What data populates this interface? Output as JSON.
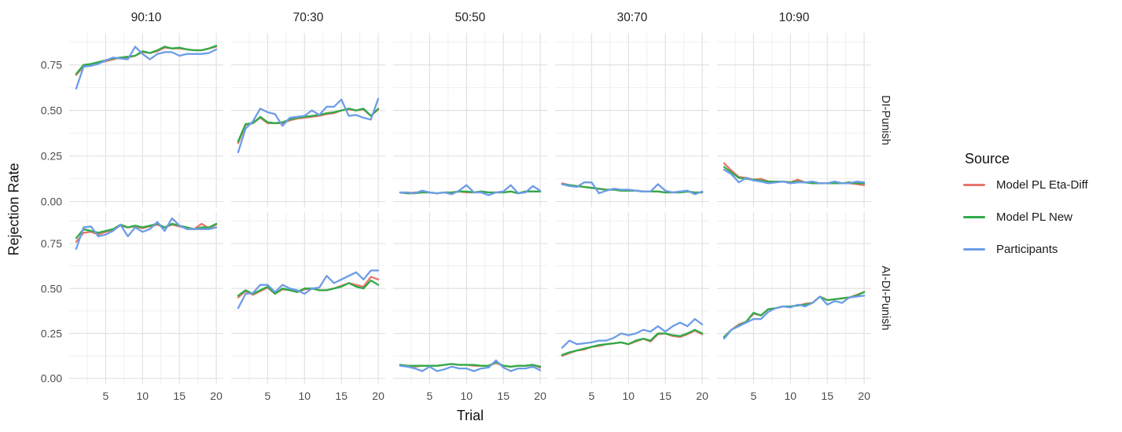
{
  "figure": {
    "y_axis_title": "Rejection Rate",
    "x_axis_title": "Trial"
  },
  "legend": {
    "title": "Source",
    "items": [
      {
        "label": "Model PL Eta-Diff",
        "color": "#e8756c"
      },
      {
        "label": "Model PL New",
        "color": "#2fab48"
      },
      {
        "label": "Participants",
        "color": "#6d9ce8"
      }
    ]
  },
  "chart_data": {
    "type": "line",
    "title": "",
    "xlabel": "Trial",
    "ylabel": "Rejection Rate",
    "x": [
      1,
      2,
      3,
      4,
      5,
      6,
      7,
      8,
      9,
      10,
      11,
      12,
      13,
      14,
      15,
      16,
      17,
      18,
      19,
      20
    ],
    "x_ticks": [
      5,
      10,
      15,
      20
    ],
    "x_tick_labels": [
      "5",
      "10",
      "15",
      "20"
    ],
    "x_minor_ticks": [
      2.5,
      7.5,
      12.5,
      17.5
    ],
    "y_ticks": [
      0,
      0.25,
      0.5,
      0.75
    ],
    "y_tick_labels": [
      "0.00",
      "0.25",
      "0.50",
      "0.75"
    ],
    "y_minor_ticks": [
      0.125,
      0.375,
      0.625,
      0.875
    ],
    "ylim": [
      0,
      0.9
    ],
    "xlim": [
      1,
      20
    ],
    "grid": true,
    "legend_position": "right",
    "facet_columns": [
      "90:10",
      "70:30",
      "50:50",
      "30:70",
      "10:90"
    ],
    "facet_rows": [
      "DI-Punish",
      "AI-DI-Punish"
    ],
    "series_names": [
      "Model PL Eta-Diff",
      "Model PL New",
      "Participants"
    ],
    "series_colors": {
      "Model PL Eta-Diff": "#e8756c",
      "Model PL New": "#2fab48",
      "Participants": "#6d9ce8"
    },
    "facets": [
      {
        "row": "DI-Punish",
        "col": "90:10",
        "series": [
          {
            "name": "Model PL Eta-Diff",
            "values": [
              0.695,
              0.74,
              0.75,
              0.76,
              0.77,
              0.78,
              0.79,
              0.79,
              0.8,
              0.82,
              0.815,
              0.825,
              0.845,
              0.84,
              0.84,
              0.835,
              0.83,
              0.83,
              0.84,
              0.85
            ]
          },
          {
            "name": "Model PL New",
            "values": [
              0.7,
              0.75,
              0.755,
              0.765,
              0.775,
              0.785,
              0.79,
              0.795,
              0.8,
              0.825,
              0.815,
              0.83,
              0.85,
              0.84,
              0.845,
              0.835,
              0.83,
              0.83,
              0.84,
              0.855
            ]
          },
          {
            "name": "Participants",
            "values": [
              0.62,
              0.74,
              0.745,
              0.755,
              0.775,
              0.79,
              0.785,
              0.78,
              0.85,
              0.81,
              0.78,
              0.81,
              0.82,
              0.82,
              0.8,
              0.81,
              0.81,
              0.81,
              0.815,
              0.835
            ]
          }
        ]
      },
      {
        "row": "DI-Punish",
        "col": "70:30",
        "series": [
          {
            "name": "Model PL Eta-Diff",
            "values": [
              0.32,
              0.42,
              0.43,
              0.46,
              0.43,
              0.43,
              0.43,
              0.445,
              0.455,
              0.46,
              0.465,
              0.47,
              0.48,
              0.485,
              0.5,
              0.505,
              0.5,
              0.505,
              0.47,
              0.505
            ]
          },
          {
            "name": "Model PL New",
            "values": [
              0.33,
              0.425,
              0.43,
              0.465,
              0.435,
              0.43,
              0.435,
              0.45,
              0.46,
              0.465,
              0.47,
              0.475,
              0.485,
              0.49,
              0.5,
              0.51,
              0.5,
              0.51,
              0.47,
              0.51
            ]
          },
          {
            "name": "Participants",
            "values": [
              0.27,
              0.4,
              0.44,
              0.51,
              0.49,
              0.48,
              0.415,
              0.46,
              0.465,
              0.47,
              0.5,
              0.475,
              0.52,
              0.52,
              0.56,
              0.47,
              0.475,
              0.46,
              0.45,
              0.565
            ]
          }
        ]
      },
      {
        "row": "DI-Punish",
        "col": "50:50",
        "series": [
          {
            "name": "Model PL Eta-Diff",
            "values": [
              0.05,
              0.045,
              0.05,
              0.05,
              0.05,
              0.045,
              0.05,
              0.05,
              0.055,
              0.05,
              0.05,
              0.055,
              0.05,
              0.05,
              0.05,
              0.055,
              0.045,
              0.055,
              0.055,
              0.055
            ]
          },
          {
            "name": "Model PL New",
            "values": [
              0.05,
              0.045,
              0.045,
              0.05,
              0.05,
              0.045,
              0.05,
              0.05,
              0.055,
              0.055,
              0.05,
              0.055,
              0.05,
              0.05,
              0.05,
              0.055,
              0.045,
              0.055,
              0.055,
              0.055
            ]
          },
          {
            "name": "Participants",
            "values": [
              0.05,
              0.05,
              0.045,
              0.06,
              0.05,
              0.045,
              0.05,
              0.04,
              0.06,
              0.09,
              0.05,
              0.05,
              0.035,
              0.05,
              0.055,
              0.09,
              0.045,
              0.05,
              0.085,
              0.06
            ]
          }
        ]
      },
      {
        "row": "DI-Punish",
        "col": "30:70",
        "series": [
          {
            "name": "Model PL Eta-Diff",
            "values": [
              0.1,
              0.09,
              0.085,
              0.08,
              0.075,
              0.07,
              0.065,
              0.065,
              0.06,
              0.06,
              0.06,
              0.055,
              0.055,
              0.055,
              0.05,
              0.05,
              0.05,
              0.055,
              0.05,
              0.05
            ]
          },
          {
            "name": "Model PL New",
            "values": [
              0.095,
              0.09,
              0.085,
              0.08,
              0.075,
              0.07,
              0.065,
              0.065,
              0.06,
              0.06,
              0.06,
              0.055,
              0.055,
              0.055,
              0.05,
              0.05,
              0.05,
              0.055,
              0.05,
              0.05
            ]
          },
          {
            "name": "Participants",
            "values": [
              0.095,
              0.085,
              0.08,
              0.105,
              0.105,
              0.045,
              0.06,
              0.07,
              0.065,
              0.065,
              0.06,
              0.055,
              0.055,
              0.095,
              0.06,
              0.05,
              0.055,
              0.06,
              0.04,
              0.055
            ]
          }
        ]
      },
      {
        "row": "DI-Punish",
        "col": "10:90",
        "series": [
          {
            "name": "Model PL Eta-Diff",
            "values": [
              0.21,
              0.17,
              0.135,
              0.13,
              0.12,
              0.125,
              0.11,
              0.11,
              0.11,
              0.105,
              0.12,
              0.105,
              0.105,
              0.1,
              0.1,
              0.105,
              0.1,
              0.1,
              0.095,
              0.09
            ]
          },
          {
            "name": "Model PL New",
            "values": [
              0.19,
              0.16,
              0.13,
              0.125,
              0.12,
              0.115,
              0.11,
              0.11,
              0.11,
              0.105,
              0.11,
              0.105,
              0.1,
              0.1,
              0.1,
              0.1,
              0.1,
              0.105,
              0.1,
              0.1
            ]
          },
          {
            "name": "Participants",
            "values": [
              0.175,
              0.15,
              0.105,
              0.13,
              0.115,
              0.11,
              0.1,
              0.105,
              0.11,
              0.1,
              0.105,
              0.105,
              0.11,
              0.1,
              0.1,
              0.11,
              0.1,
              0.1,
              0.11,
              0.105
            ]
          }
        ]
      },
      {
        "row": "AI-DI-Punish",
        "col": "90:10",
        "series": [
          {
            "name": "Model PL Eta-Diff",
            "values": [
              0.76,
              0.81,
              0.815,
              0.8,
              0.815,
              0.825,
              0.85,
              0.84,
              0.845,
              0.835,
              0.845,
              0.855,
              0.84,
              0.855,
              0.845,
              0.835,
              0.83,
              0.86,
              0.835,
              0.855
            ]
          },
          {
            "name": "Model PL New",
            "values": [
              0.78,
              0.83,
              0.82,
              0.81,
              0.82,
              0.83,
              0.855,
              0.84,
              0.85,
              0.84,
              0.85,
              0.86,
              0.84,
              0.86,
              0.85,
              0.84,
              0.83,
              0.84,
              0.84,
              0.86
            ]
          },
          {
            "name": "Participants",
            "values": [
              0.72,
              0.84,
              0.845,
              0.79,
              0.8,
              0.82,
              0.855,
              0.79,
              0.84,
              0.815,
              0.83,
              0.87,
              0.82,
              0.89,
              0.85,
              0.83,
              0.83,
              0.83,
              0.83,
              0.84
            ]
          }
        ]
      },
      {
        "row": "AI-DI-Punish",
        "col": "70:30",
        "series": [
          {
            "name": "Model PL Eta-Diff",
            "values": [
              0.45,
              0.485,
              0.465,
              0.485,
              0.505,
              0.47,
              0.495,
              0.49,
              0.48,
              0.495,
              0.5,
              0.49,
              0.49,
              0.5,
              0.515,
              0.53,
              0.52,
              0.51,
              0.565,
              0.55
            ]
          },
          {
            "name": "Model PL New",
            "values": [
              0.46,
              0.49,
              0.47,
              0.49,
              0.51,
              0.47,
              0.5,
              0.49,
              0.48,
              0.5,
              0.5,
              0.49,
              0.49,
              0.5,
              0.51,
              0.53,
              0.51,
              0.5,
              0.545,
              0.52
            ]
          },
          {
            "name": "Participants",
            "values": [
              0.39,
              0.47,
              0.475,
              0.52,
              0.52,
              0.48,
              0.52,
              0.5,
              0.49,
              0.47,
              0.5,
              0.505,
              0.57,
              0.53,
              0.55,
              0.57,
              0.59,
              0.55,
              0.6,
              0.6
            ]
          }
        ]
      },
      {
        "row": "AI-DI-Punish",
        "col": "50:50",
        "series": [
          {
            "name": "Model PL Eta-Diff",
            "values": [
              0.075,
              0.07,
              0.065,
              0.07,
              0.07,
              0.07,
              0.075,
              0.08,
              0.075,
              0.075,
              0.07,
              0.07,
              0.07,
              0.085,
              0.07,
              0.065,
              0.07,
              0.07,
              0.075,
              0.06
            ]
          },
          {
            "name": "Model PL New",
            "values": [
              0.075,
              0.07,
              0.07,
              0.07,
              0.07,
              0.07,
              0.075,
              0.08,
              0.075,
              0.075,
              0.075,
              0.07,
              0.07,
              0.09,
              0.07,
              0.065,
              0.07,
              0.07,
              0.075,
              0.065
            ]
          },
          {
            "name": "Participants",
            "values": [
              0.07,
              0.065,
              0.055,
              0.04,
              0.065,
              0.04,
              0.05,
              0.065,
              0.055,
              0.055,
              0.04,
              0.055,
              0.06,
              0.1,
              0.06,
              0.04,
              0.055,
              0.055,
              0.065,
              0.045
            ]
          }
        ]
      },
      {
        "row": "AI-DI-Punish",
        "col": "30:70",
        "series": [
          {
            "name": "Model PL Eta-Diff",
            "values": [
              0.125,
              0.14,
              0.155,
              0.16,
              0.175,
              0.18,
              0.19,
              0.195,
              0.2,
              0.19,
              0.205,
              0.22,
              0.205,
              0.245,
              0.25,
              0.235,
              0.23,
              0.245,
              0.265,
              0.245
            ]
          },
          {
            "name": "Model PL New",
            "values": [
              0.13,
              0.145,
              0.155,
              0.165,
              0.175,
              0.185,
              0.19,
              0.195,
              0.2,
              0.19,
              0.21,
              0.22,
              0.21,
              0.25,
              0.25,
              0.24,
              0.235,
              0.25,
              0.27,
              0.25
            ]
          },
          {
            "name": "Participants",
            "values": [
              0.17,
              0.21,
              0.19,
              0.195,
              0.2,
              0.21,
              0.21,
              0.225,
              0.25,
              0.24,
              0.25,
              0.27,
              0.26,
              0.29,
              0.26,
              0.29,
              0.31,
              0.29,
              0.33,
              0.3
            ]
          }
        ]
      },
      {
        "row": "AI-DI-Punish",
        "col": "10:90",
        "series": [
          {
            "name": "Model PL Eta-Diff",
            "values": [
              0.23,
              0.27,
              0.3,
              0.315,
              0.36,
              0.35,
              0.385,
              0.39,
              0.4,
              0.4,
              0.405,
              0.415,
              0.42,
              0.455,
              0.435,
              0.44,
              0.445,
              0.45,
              0.465,
              0.48
            ]
          },
          {
            "name": "Model PL New",
            "values": [
              0.23,
              0.27,
              0.295,
              0.315,
              0.365,
              0.35,
              0.385,
              0.39,
              0.4,
              0.4,
              0.405,
              0.41,
              0.42,
              0.455,
              0.435,
              0.44,
              0.445,
              0.45,
              0.46,
              0.48
            ]
          },
          {
            "name": "Participants",
            "values": [
              0.22,
              0.27,
              0.29,
              0.31,
              0.33,
              0.33,
              0.37,
              0.39,
              0.4,
              0.395,
              0.41,
              0.4,
              0.42,
              0.455,
              0.41,
              0.43,
              0.42,
              0.45,
              0.455,
              0.46
            ]
          }
        ]
      }
    ]
  }
}
